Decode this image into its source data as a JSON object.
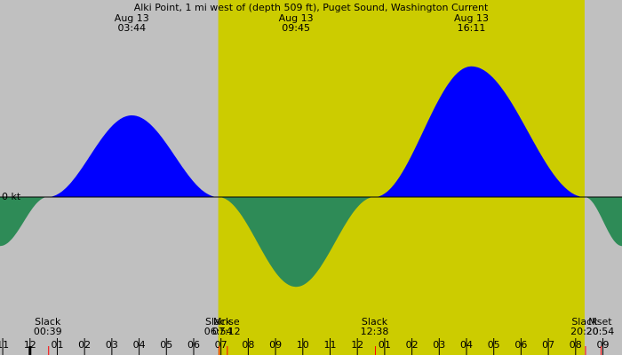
{
  "chart_data": {
    "type": "area",
    "title": "Alki Point, 1 mi west of (depth 509 ft), Puget Sound, Washington Current",
    "zero_label": "0 kt",
    "x_range_hours": [
      -1.1,
      21.7
    ],
    "y_range": [
      -1.1,
      1.6
    ],
    "daylight": {
      "start_hour": 6.9,
      "end_hour": 20.33
    },
    "colors": {
      "night": "#c0c0c0",
      "day": "#cccc00",
      "flood": "#0000ff",
      "ebb": "#2e8b57",
      "moon_tick": "#ff0000",
      "slack_tick": "#ff0000"
    },
    "series": [
      {
        "values": [
          [
            -1.1,
            -0.6
          ],
          [
            0.65,
            0.0
          ],
          [
            3.73,
            1.0
          ],
          [
            6.9,
            0.0
          ],
          [
            9.75,
            -1.1
          ],
          [
            12.63,
            0.0
          ],
          [
            16.18,
            1.6
          ],
          [
            20.33,
            0.0
          ],
          [
            21.7,
            -0.6
          ]
        ]
      }
    ],
    "peak_labels": [
      {
        "date": "Aug 13",
        "time": "03:44",
        "hour": 3.73
      },
      {
        "date": "Aug 13",
        "time": "09:45",
        "hour": 9.75
      },
      {
        "date": "Aug 13",
        "time": "16:11",
        "hour": 16.18
      }
    ],
    "events": [
      {
        "label": "Slack",
        "time": "00:39",
        "hour": 0.65
      },
      {
        "label": "Slack",
        "time": "06:54",
        "hour": 6.9
      },
      {
        "label": "Mrise",
        "time": "07:12",
        "hour": 7.2
      },
      {
        "label": "Slack",
        "time": "12:38",
        "hour": 12.63
      },
      {
        "label": "Slack",
        "time": "20:20",
        "hour": 20.33
      },
      {
        "label": "Mset",
        "time": "20:54",
        "hour": 20.9
      }
    ],
    "hour_ticks": [
      "11",
      "12",
      "01",
      "02",
      "03",
      "04",
      "05",
      "06",
      "07",
      "08",
      "09",
      "10",
      "11",
      "12",
      "01",
      "02",
      "03",
      "04",
      "05",
      "06",
      "07",
      "08",
      "09"
    ],
    "hour_ticks_start": -1,
    "moon_ticks": [
      7.2,
      20.9
    ]
  }
}
